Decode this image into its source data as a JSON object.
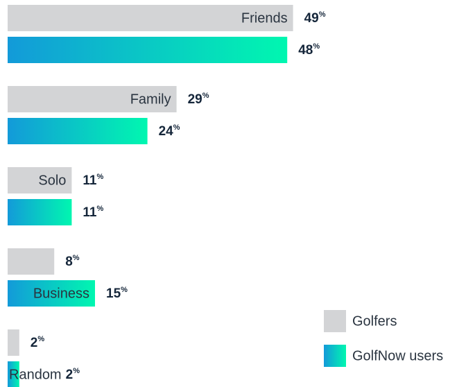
{
  "chart_data": {
    "type": "bar",
    "orientation": "horizontal",
    "categories": [
      "Friends",
      "Family",
      "Solo",
      "Business",
      "Random"
    ],
    "series": [
      {
        "name": "Golfers",
        "color": "#d3d4d6",
        "values": [
          49,
          29,
          11,
          8,
          2
        ],
        "value_labels": [
          "49%",
          "29%",
          "11%",
          "8%",
          "2%"
        ]
      },
      {
        "name": "GolfNow users",
        "color": [
          "#139ad9",
          "#00f7b0"
        ],
        "values": [
          48,
          24,
          11,
          15,
          2
        ],
        "value_labels": [
          "48%",
          "24%",
          "11%",
          "15%",
          "2%"
        ]
      }
    ],
    "legend": "lower right"
  }
}
